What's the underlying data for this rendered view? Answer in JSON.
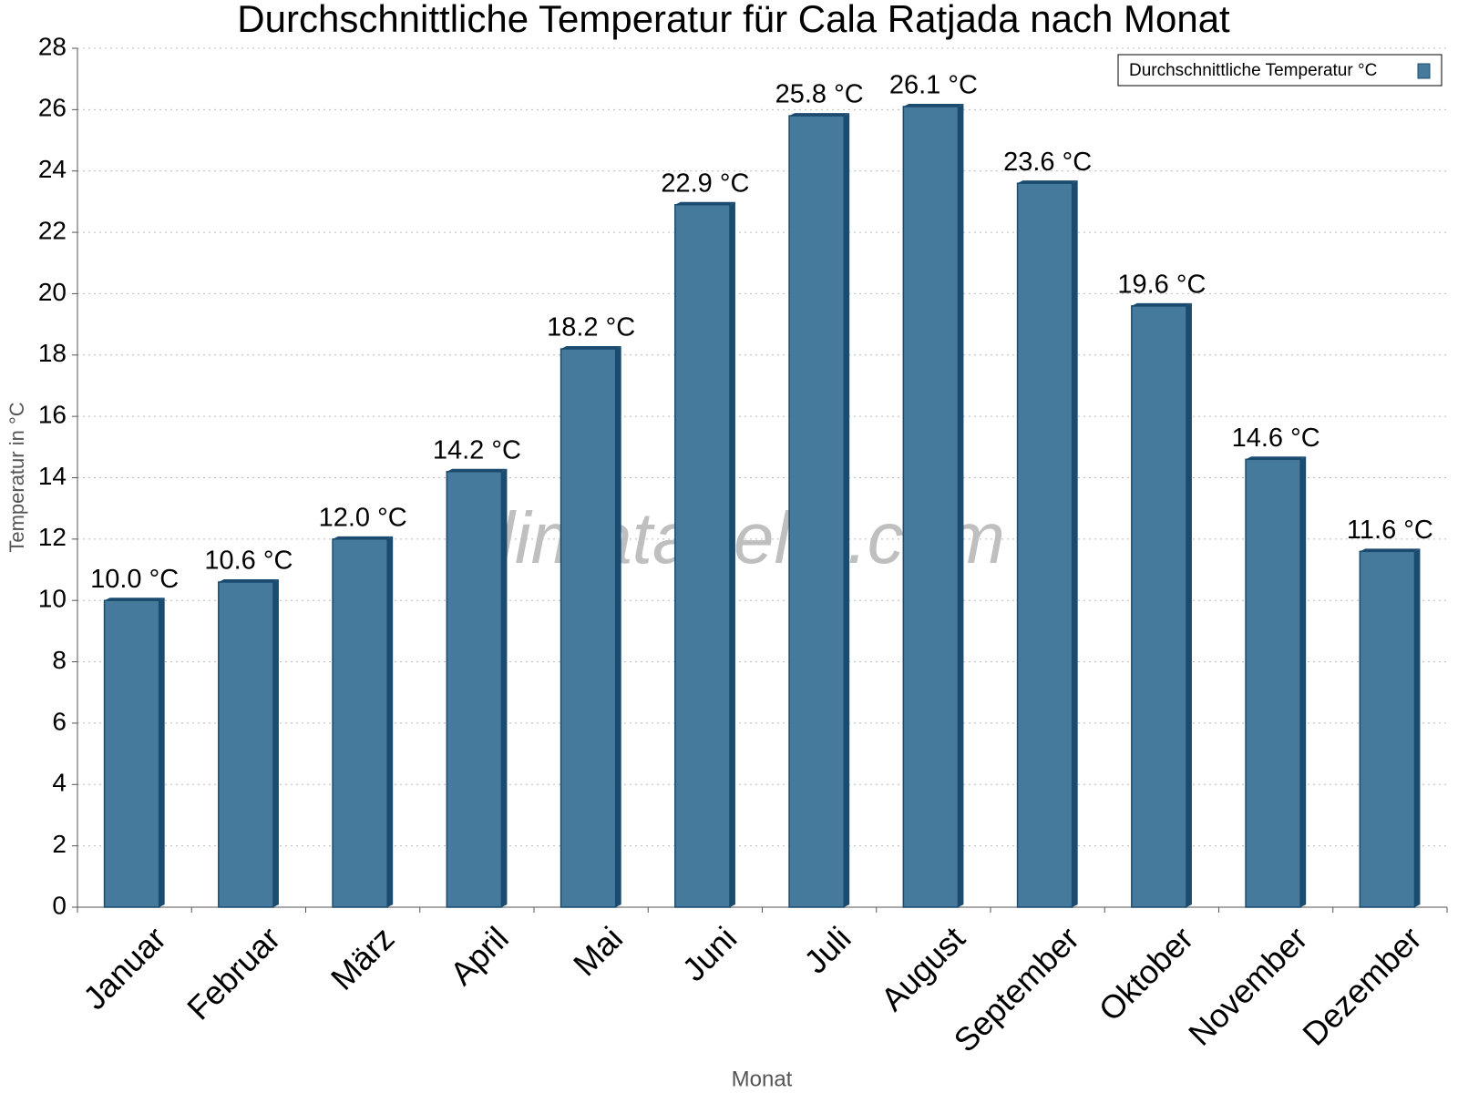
{
  "chart_data": {
    "type": "bar",
    "title": "Durchschnittliche Temperatur für Cala Ratjada nach Monat",
    "x_label": "Monat",
    "y_label": "Temperatur in °C",
    "watermark": "klimatabelle.com",
    "categories": [
      "Januar",
      "Februar",
      "März",
      "April",
      "Mai",
      "Juni",
      "Juli",
      "August",
      "September",
      "Oktober",
      "November",
      "Dezember"
    ],
    "series": [
      {
        "name": "Durchschnittliche Temperatur °C",
        "color": "#457a9c",
        "values": [
          10.0,
          10.6,
          12.0,
          14.2,
          18.2,
          22.9,
          25.8,
          26.1,
          23.6,
          19.6,
          14.6,
          11.6
        ],
        "value_labels": [
          "10.0 °C",
          "10.6 °C",
          "12.0 °C",
          "14.2 °C",
          "18.2 °C",
          "22.9 °C",
          "25.8 °C",
          "26.1 °C",
          "23.6 °C",
          "19.6 °C",
          "14.6 °C",
          "11.6 °C"
        ]
      }
    ],
    "ylim": [
      0,
      28
    ],
    "yticks": [
      0,
      2,
      4,
      6,
      8,
      10,
      12,
      14,
      16,
      18,
      20,
      22,
      24,
      26,
      28
    ],
    "grid": true,
    "legend": "top-right"
  }
}
